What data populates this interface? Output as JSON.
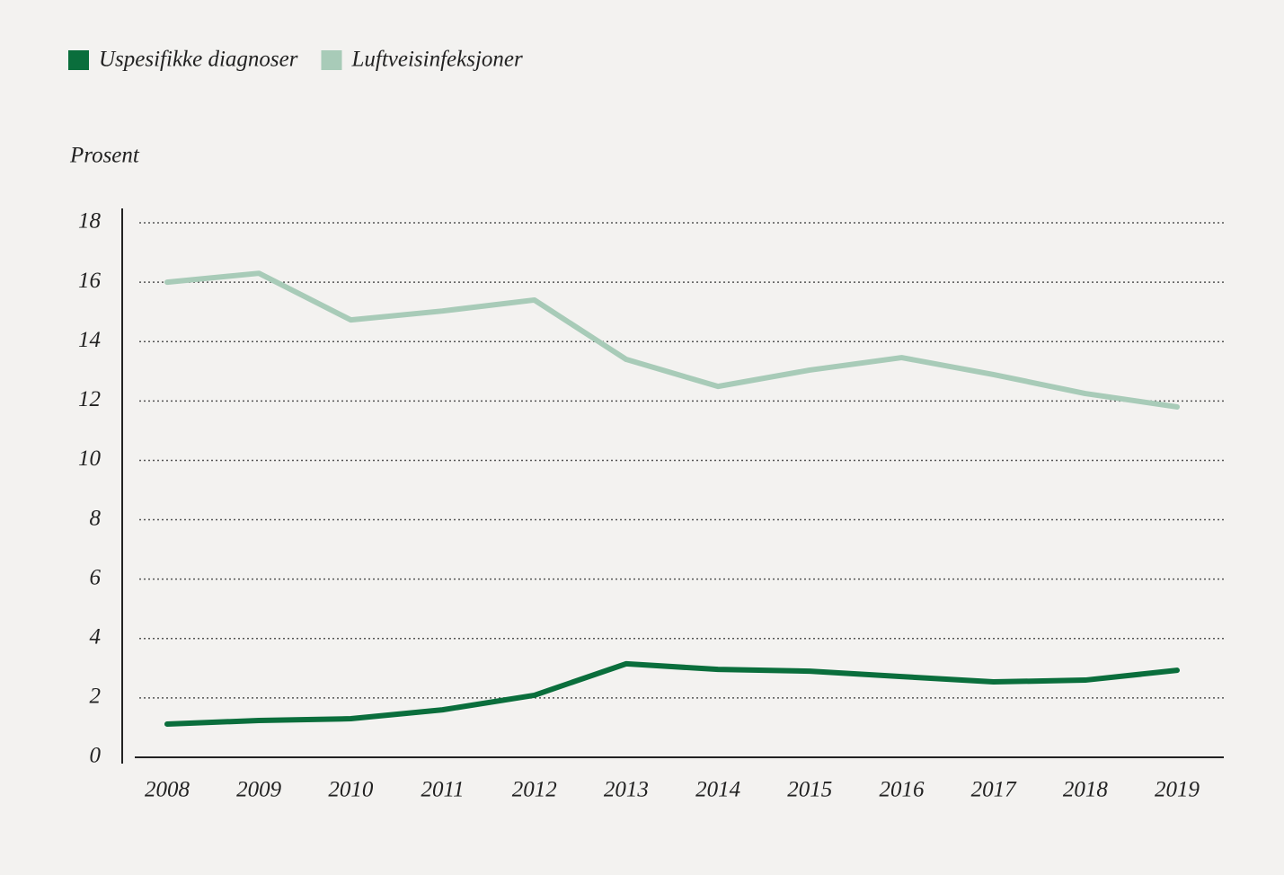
{
  "chart_data": {
    "type": "line",
    "y_label": "Prosent",
    "categories": [
      "2008",
      "2009",
      "2010",
      "2011",
      "2012",
      "2013",
      "2014",
      "2015",
      "2016",
      "2017",
      "2018",
      "2019"
    ],
    "series": [
      {
        "name": "Uspesifikke diagnoser",
        "color": "#0a6e3c",
        "values": [
          1.12,
          1.24,
          1.3,
          1.6,
          2.09,
          3.15,
          2.96,
          2.9,
          2.72,
          2.54,
          2.6,
          2.93
        ]
      },
      {
        "name": "Luftveisinfeksjoner",
        "color": "#a8cbb8",
        "values": [
          16.0,
          16.3,
          14.73,
          15.03,
          15.4,
          13.4,
          12.49,
          13.04,
          13.46,
          12.89,
          12.25,
          11.8
        ]
      }
    ],
    "ylim": [
      0,
      18
    ],
    "yticks": [
      0,
      2,
      4,
      6,
      8,
      10,
      12,
      14,
      16,
      18
    ],
    "grid": true
  }
}
